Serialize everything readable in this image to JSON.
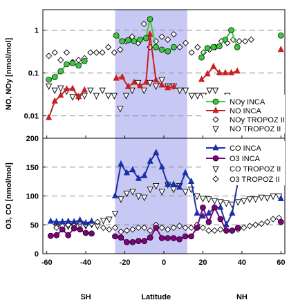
{
  "chart_data": [
    {
      "type": "line",
      "panel": "top",
      "ylabel": "NO, NOy [nmol/mol]",
      "yscale": "log",
      "ylim": [
        0.003,
        3
      ],
      "yticks": [
        "0.01",
        "0.1",
        "1"
      ],
      "xlim": [
        -60,
        62
      ],
      "grid": "horizontal dashed at decades",
      "legend_position": "bottom-right",
      "series": [
        {
          "name": "NOy INCA",
          "color": "#3cc83c",
          "marker": "circle",
          "x": [
            -57,
            -54,
            -51,
            -48,
            -45,
            -42,
            -39,
            -23,
            -20,
            -17,
            -14,
            -11,
            -8,
            -6,
            -3,
            0,
            3,
            6,
            20,
            23,
            26,
            29,
            32,
            35,
            38,
            60
          ],
          "y": [
            0.07,
            0.08,
            0.11,
            0.16,
            0.17,
            0.15,
            0.19,
            0.75,
            0.55,
            0.58,
            0.55,
            0.6,
            0.65,
            1.8,
            0.4,
            0.35,
            0.32,
            0.4,
            0.23,
            0.38,
            0.4,
            0.42,
            0.6,
            1.0,
            0.4,
            0.75
          ]
        },
        {
          "name": "NO INCA",
          "color": "#c82020",
          "marker": "triangle",
          "x": [
            -57,
            -54,
            -51,
            -48,
            -45,
            -42,
            -39,
            -23,
            -20,
            -17,
            -14,
            -11,
            -8,
            -6,
            -3,
            0,
            3,
            6,
            20,
            23,
            26,
            29,
            32,
            35,
            38,
            60
          ],
          "y": [
            0.009,
            0.022,
            0.03,
            0.042,
            0.043,
            0.028,
            0.04,
            0.075,
            0.08,
            0.048,
            0.06,
            0.05,
            0.06,
            0.8,
            0.068,
            0.052,
            0.045,
            0.048,
            0.07,
            0.095,
            0.14,
            0.1,
            0.1,
            0.1,
            0.11,
            0.35
          ]
        },
        {
          "name": "NOy TROPOZ II",
          "color": "#000000",
          "marker": "diamond",
          "x": [
            -57,
            -54,
            -51,
            -48,
            -45,
            -42,
            -39,
            -36,
            -33,
            -30,
            -27,
            -24,
            -21,
            -18,
            -15,
            -12,
            -9,
            -6,
            -3,
            0,
            3,
            6,
            9,
            12,
            15,
            18,
            21,
            24,
            27,
            30,
            33,
            36,
            39,
            42,
            45
          ],
          "y": [
            0.25,
            0.3,
            0.2,
            0.3,
            0.18,
            0.2,
            0.22,
            0.3,
            0.3,
            0.3,
            0.4,
            0.3,
            0.35,
            0.55,
            0.7,
            0.5,
            1.4,
            0.4,
            0.55,
            0.7,
            0.6,
            0.8,
            0.4,
            0.5,
            0.3,
            0.4,
            0.3,
            0.35,
            0.4,
            0.55,
            0.5,
            0.6,
            0.55,
            0.55,
            0.6
          ]
        },
        {
          "name": "NO TROPOZ II",
          "color": "#000000",
          "marker": "triangle-down",
          "x": [
            -57,
            -54,
            -51,
            -48,
            -45,
            -42,
            -39,
            -36,
            -33,
            -30,
            -27,
            -24,
            -21,
            -18,
            -15,
            -12,
            -9,
            -6,
            -3,
            0,
            3,
            6,
            9,
            12,
            15,
            18,
            21,
            24,
            27,
            30,
            33
          ],
          "y": [
            0.05,
            0.04,
            0.045,
            0.038,
            0.028,
            0.028,
            0.03,
            0.04,
            0.03,
            0.04,
            0.03,
            0.03,
            0.015,
            0.03,
            0.04,
            0.06,
            0.04,
            0.06,
            0.05,
            0.07,
            0.05,
            0.05,
            0.04,
            0.04,
            0.03,
            0.03,
            0.03,
            0.04,
            0.04,
            0.022,
            0.03
          ]
        }
      ]
    },
    {
      "type": "line",
      "panel": "bottom",
      "xlabel": "Latitude",
      "ylabel": "O3, CO [nmol/mol]",
      "ylim": [
        0,
        200
      ],
      "yticks": [
        0,
        50,
        100,
        150,
        200
      ],
      "xlim": [
        -62,
        62
      ],
      "xticks": [
        -60,
        -40,
        -20,
        0,
        20,
        40,
        60
      ],
      "region_labels": [
        "SH",
        "Latitude",
        "NH"
      ],
      "grid": "horizontal dashed at 50, 100, 150",
      "highlight": {
        "x0": -25,
        "x1": 12,
        "color": "#c8c8f5"
      },
      "legend_position": "top-right",
      "series": [
        {
          "name": "CO INCA",
          "color": "#1a2fa8",
          "marker": "triangle",
          "x": [
            -58,
            -55,
            -52,
            -49,
            -46,
            -43,
            -40,
            -37,
            -25,
            -22,
            -19,
            -16,
            -13,
            -10,
            -7,
            -4,
            -1,
            2,
            5,
            8,
            11,
            14,
            17,
            20,
            23,
            26,
            29,
            32,
            35,
            38,
            60
          ],
          "y": [
            56,
            55,
            55,
            56,
            55,
            58,
            53,
            56,
            100,
            155,
            140,
            145,
            130,
            135,
            160,
            175,
            150,
            120,
            120,
            115,
            140,
            125,
            70,
            65,
            70,
            80,
            80,
            50,
            70,
            125,
            95
          ]
        },
        {
          "name": "O3 INCA",
          "color": "#800080",
          "marker": "circle",
          "x": [
            -58,
            -55,
            -52,
            -49,
            -46,
            -43,
            -40,
            -37,
            -25,
            -22,
            -19,
            -16,
            -13,
            -10,
            -7,
            -4,
            -1,
            2,
            5,
            8,
            11,
            14,
            17,
            20,
            23,
            26,
            29,
            32,
            35,
            38,
            60
          ],
          "y": [
            31,
            32,
            42,
            32,
            44,
            42,
            36,
            35,
            30,
            28,
            20,
            20,
            22,
            22,
            28,
            45,
            27,
            27,
            27,
            25,
            30,
            30,
            45,
            80,
            55,
            80,
            60,
            40,
            40,
            45,
            55
          ]
        },
        {
          "name": "CO TROPOZ II",
          "color": "#000000",
          "marker": "triangle-down",
          "x": [
            -55,
            -52,
            -49,
            -46,
            -43,
            -40,
            -37,
            -34,
            -31,
            -28,
            -25,
            -22,
            -19,
            -16,
            -13,
            -10,
            -7,
            -4,
            -1,
            2,
            5,
            8,
            11,
            14,
            17,
            20,
            23,
            26,
            29,
            32,
            35,
            38,
            41,
            44,
            47,
            50,
            53,
            56,
            59
          ],
          "y": [
            47,
            46,
            48,
            47,
            50,
            49,
            51,
            48,
            58,
            60,
            70,
            95,
            105,
            108,
            100,
            98,
            112,
            118,
            108,
            120,
            112,
            118,
            108,
            112,
            100,
            96,
            95,
            92,
            90,
            88,
            86,
            90,
            92,
            95,
            95,
            98,
            97,
            100,
            100
          ]
        },
        {
          "name": "O3 TROPOZ II",
          "color": "#000000",
          "marker": "diamond",
          "x": [
            -55,
            -52,
            -49,
            -46,
            -43,
            -40,
            -37,
            -34,
            -31,
            -28,
            -25,
            -22,
            -19,
            -16,
            -13,
            -10,
            -7,
            -4,
            -1,
            2,
            5,
            8,
            11,
            14,
            17,
            20,
            23,
            26,
            29,
            32,
            35,
            38,
            41,
            44,
            47,
            50,
            53,
            56,
            59
          ],
          "y": [
            45,
            48,
            50,
            52,
            55,
            50,
            52,
            55,
            45,
            42,
            45,
            38,
            40,
            42,
            45,
            45,
            40,
            50,
            45,
            42,
            45,
            48,
            45,
            45,
            50,
            45,
            40,
            40,
            42,
            40,
            40,
            42,
            45,
            48,
            50,
            52,
            55,
            60,
            62
          ]
        }
      ]
    }
  ]
}
